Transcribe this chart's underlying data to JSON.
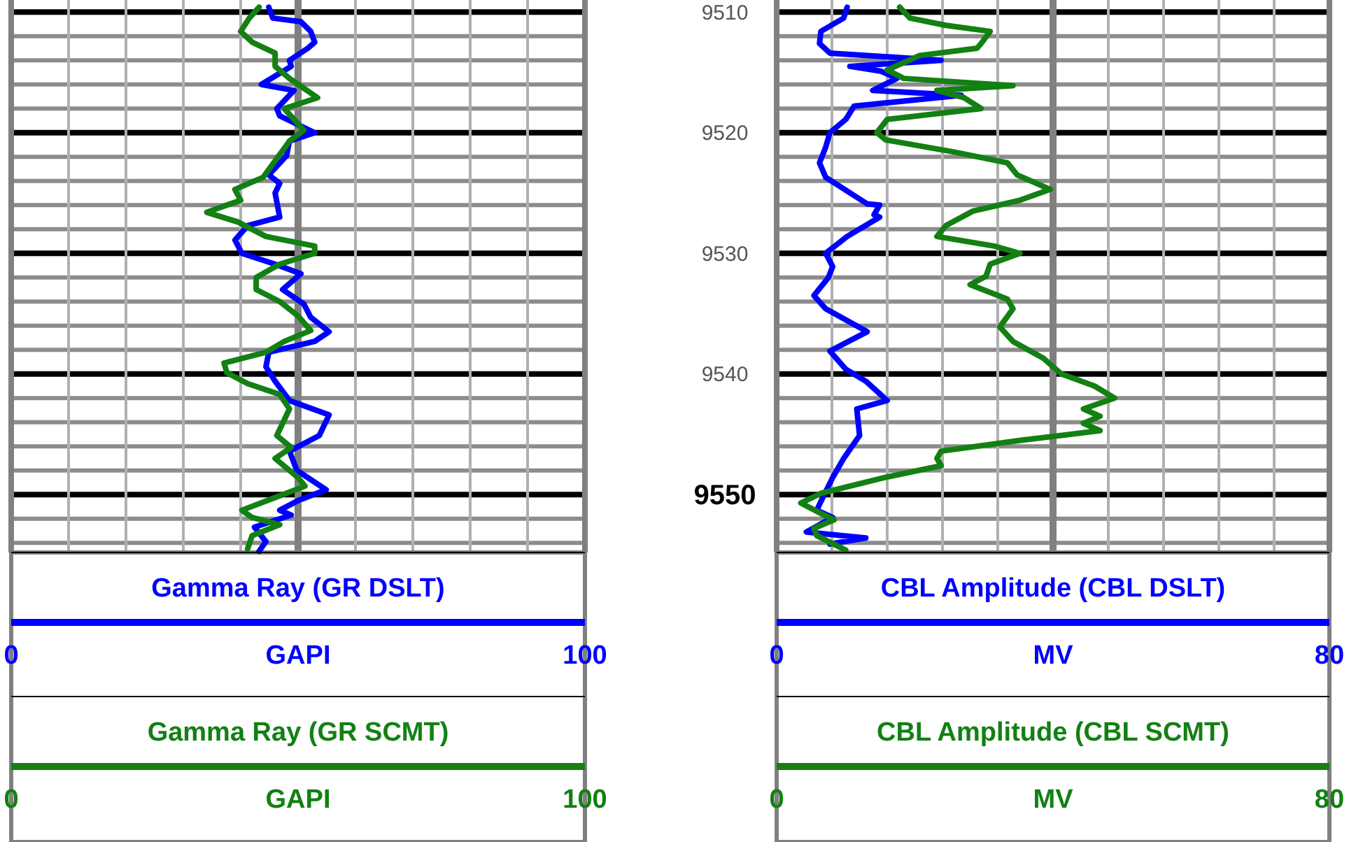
{
  "chart_data": [
    {
      "type": "line",
      "xlabel": "GAPI",
      "x2label": "GAPI",
      "x2lim": [
        0,
        100
      ],
      "x2ticks": [
        0,
        100
      ],
      "xlim": [
        0,
        100
      ],
      "xticks": [
        0,
        {
          "value": 10,
          "label": null
        },
        {
          "value": 20,
          "label": null
        },
        {
          "value": 30,
          "label": null
        },
        {
          "value": 40,
          "label": null
        },
        {
          "value": 50,
          "label": null
        },
        {
          "value": 60,
          "label": null
        },
        {
          "value": 70,
          "label": null
        },
        {
          "value": 80,
          "label": null
        },
        {
          "value": 90,
          "label": null
        },
        100
      ],
      "ylim": [
        9554.8,
        9509
      ],
      "yticks": [
        9510,
        {
          "value": 9512,
          "label": null
        },
        {
          "value": 9514,
          "label": null
        },
        {
          "value": 9516,
          "label": null
        },
        {
          "value": 9518,
          "label": null
        },
        9520,
        {
          "value": 9522,
          "label": null
        },
        {
          "value": 9524,
          "label": null
        },
        {
          "value": 9526,
          "label": null
        },
        {
          "value": 9528,
          "label": null
        },
        9530,
        {
          "value": 9532,
          "label": null
        },
        {
          "value": 9534,
          "label": null
        },
        {
          "value": 9536,
          "label": null
        },
        {
          "value": 9538,
          "label": null
        },
        9540,
        {
          "value": 9542,
          "label": null
        },
        {
          "value": 9544,
          "label": null
        },
        {
          "value": 9546,
          "label": null
        },
        {
          "value": 9548,
          "label": null
        },
        9550,
        {
          "value": 9552,
          "label": null
        },
        {
          "value": 9554,
          "label": null
        }
      ],
      "tick_labels": "x",
      "grid": true,
      "legend": "bottom",
      "marker": "none",
      "line_style": "solid",
      "ref_lines": [
        {
          "axis": "x",
          "value": 50,
          "color": "#808080"
        }
      ],
      "series": [
        {
          "name": "Gamma Ray (GR DSLT)",
          "color": "#0000ff",
          "x": [
            44.9,
            45.6,
            50.5,
            52.2,
            52.9,
            51.7,
            48.5,
            48.8,
            43.6,
            49.3,
            46.3,
            46.8,
            52.9,
            48.5,
            48,
            44.9,
            46.8,
            46,
            46.8,
            41.2,
            39,
            40.2,
            46,
            50.5,
            47.3,
            51,
            52.2,
            55.4,
            52.9,
            44.9,
            44.4,
            46,
            48.5,
            55.4,
            53.7,
            48.5,
            49.8,
            54.9,
            50,
            46.8,
            48.8,
            42.4,
            44.4,
            43.2
          ],
          "values": [
            9509.6,
            9510.5,
            9510.8,
            9511.6,
            9512.5,
            9513,
            9514,
            9514.5,
            9516,
            9516.5,
            9518,
            9518.6,
            9520,
            9520.7,
            9521.9,
            9523.5,
            9524.2,
            9525,
            9527,
            9527.7,
            9528.9,
            9530,
            9530.9,
            9531.7,
            9533,
            9534.2,
            9535.3,
            9536.5,
            9537.3,
            9538.2,
            9539.4,
            9540.6,
            9542.2,
            9543.4,
            9545.1,
            9546.4,
            9548,
            9549.6,
            9550.5,
            9551.3,
            9551.7,
            9552.7,
            9553.9,
            9554.7
          ]
        },
        {
          "name": "Gamma Ray (GR SCMT)",
          "color": "#138013",
          "x": [
            43.2,
            41.5,
            40,
            42,
            46,
            46,
            48.5,
            53.4,
            47.6,
            51,
            48.5,
            43.9,
            39,
            40,
            34.1,
            39.5,
            44.4,
            52.9,
            52.9,
            46.8,
            42.7,
            42.7,
            46.8,
            50,
            52.2,
            47.6,
            44.4,
            37.1,
            37.6,
            41.2,
            46.8,
            48.5,
            46.3,
            48.8,
            46,
            50,
            51.2,
            46.8,
            40.2,
            42,
            46.8,
            42,
            41.2
          ],
          "values": [
            9509.6,
            9510.5,
            9511.6,
            9512.5,
            9513.4,
            9514.5,
            9515.5,
            9517.1,
            9518,
            9519.8,
            9520.7,
            9523.7,
            9524.7,
            9525.6,
            9526.6,
            9527.4,
            9528.6,
            9529.4,
            9530,
            9530.9,
            9532,
            9533,
            9534,
            9535.2,
            9536.4,
            9537.3,
            9538.2,
            9539.1,
            9539.9,
            9540.8,
            9541.7,
            9542.9,
            9545.1,
            9546.1,
            9547,
            9548.6,
            9549.3,
            9550.1,
            9551.3,
            9551.9,
            9552.5,
            9553.4,
            9554.5
          ]
        }
      ]
    },
    {
      "type": "line",
      "xlabel": "MV",
      "x2label": "MV",
      "x2lim": [
        0,
        80
      ],
      "x2ticks": [
        0,
        80
      ],
      "xlim": [
        0,
        80
      ],
      "xticks": [
        0,
        {
          "value": 8,
          "label": null
        },
        {
          "value": 16,
          "label": null
        },
        {
          "value": 24,
          "label": null
        },
        {
          "value": 32,
          "label": null
        },
        {
          "value": 40,
          "label": null
        },
        {
          "value": 48,
          "label": null
        },
        {
          "value": 56,
          "label": null
        },
        {
          "value": 64,
          "label": null
        },
        {
          "value": 72,
          "label": null
        },
        80
      ],
      "ylim": [
        9554.8,
        9509
      ],
      "yticks": [
        9510,
        {
          "value": 9512,
          "label": null
        },
        {
          "value": 9514,
          "label": null
        },
        {
          "value": 9516,
          "label": null
        },
        {
          "value": 9518,
          "label": null
        },
        9520,
        {
          "value": 9522,
          "label": null
        },
        {
          "value": 9524,
          "label": null
        },
        {
          "value": 9526,
          "label": null
        },
        {
          "value": 9528,
          "label": null
        },
        9530,
        {
          "value": 9532,
          "label": null
        },
        {
          "value": 9534,
          "label": null
        },
        {
          "value": 9536,
          "label": null
        },
        {
          "value": 9538,
          "label": null
        },
        9540,
        {
          "value": 9542,
          "label": null
        },
        {
          "value": 9544,
          "label": null
        },
        {
          "value": 9546,
          "label": null
        },
        {
          "value": 9548,
          "label": null
        },
        9550,
        {
          "value": 9552,
          "label": null
        },
        {
          "value": 9554,
          "label": null
        }
      ],
      "grid": true,
      "legend": "bottom",
      "marker": "none",
      "line_style": "solid",
      "ref_lines": [
        {
          "axis": "x",
          "value": 40,
          "color": "#808080"
        }
      ],
      "series": [
        {
          "name": "CBL Amplitude (CBL DSLT)",
          "color": "#0000ff",
          "x": [
            10.2,
            9.7,
            6.4,
            6.2,
            7.7,
            23.8,
            10.6,
            15.1,
            17.4,
            13.9,
            26.7,
            11.2,
            10,
            7.7,
            7.1,
            6.2,
            7.1,
            13.1,
            14.9,
            14.1,
            14.9,
            10.2,
            7.1,
            8.1,
            7.5,
            5.4,
            7.1,
            13.1,
            7.7,
            10,
            12.9,
            16,
            11.6,
            12,
            9.7,
            8.1,
            6.8,
            5.8,
            8.1,
            4.3,
            12.9,
            7.7
          ],
          "values": [
            9509.6,
            9510.5,
            9511.6,
            9512.6,
            9513.4,
            9514,
            9514.5,
            9514.9,
            9515.5,
            9516.5,
            9516.9,
            9517.8,
            9518.9,
            9520,
            9521.2,
            9522.5,
            9523.7,
            9525.9,
            9526,
            9526.8,
            9527,
            9528.6,
            9530,
            9531.1,
            9532,
            9533.5,
            9534.6,
            9536.5,
            9538.1,
            9539.6,
            9540.6,
            9542.2,
            9542.9,
            9545.1,
            9547,
            9548.6,
            9550.1,
            9551.3,
            9551.9,
            9553.1,
            9553.6,
            9554.1
          ]
        },
        {
          "name": "CBL Amplitude (CBL SCMT)",
          "color": "#138013",
          "x": [
            17.8,
            19.3,
            24.5,
            30.9,
            29.6,
            29,
            20.7,
            16,
            18.4,
            34.2,
            23.2,
            27.1,
            29.6,
            16,
            14.5,
            15.8,
            25.7,
            33.4,
            34.8,
            39.6,
            35.2,
            28.4,
            24.5,
            23.2,
            31.5,
            35.2,
            30.9,
            30.3,
            28,
            33.4,
            34.2,
            32.3,
            34.2,
            38.6,
            41.2,
            46,
            48.9,
            44.4,
            46.8,
            44.4,
            46.8,
            35.4,
            23.8,
            23.2,
            23.8,
            15.5,
            6.4,
            3.5,
            6.2,
            8.3,
            5.4,
            5.8,
            10
          ],
          "values": [
            9509.6,
            9510.5,
            9511.1,
            9511.6,
            9512.6,
            9513,
            9513.6,
            9514.8,
            9515.5,
            9516.1,
            9516.5,
            9517.1,
            9518,
            9518.9,
            9520,
            9520.6,
            9521.6,
            9522.5,
            9523.5,
            9524.7,
            9525.6,
            9526.5,
            9527.7,
            9528.6,
            9529.4,
            9530,
            9530.9,
            9531.9,
            9532.6,
            9533.8,
            9534.6,
            9536.1,
            9537.3,
            9538.7,
            9540,
            9541,
            9542,
            9542.9,
            9543.5,
            9544.1,
            9544.7,
            9545.5,
            9546.4,
            9547,
            9547.6,
            9548.6,
            9549.9,
            9550.7,
            9551.5,
            9552.1,
            9552.8,
            9553.4,
            9554.6
          ]
        }
      ]
    }
  ]
}
